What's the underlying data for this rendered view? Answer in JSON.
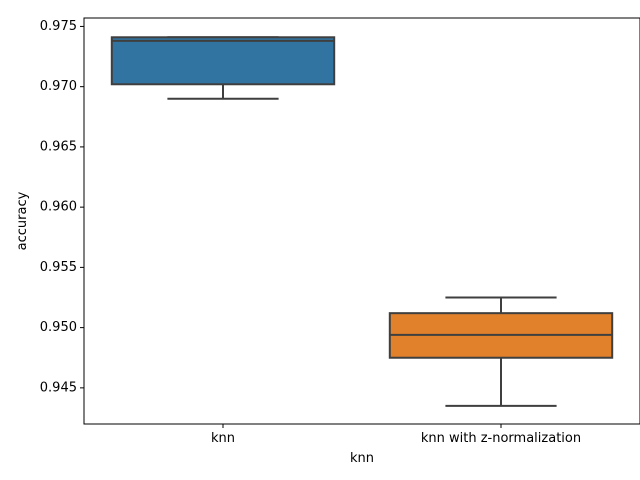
{
  "chart_data": {
    "type": "box",
    "title": "",
    "xlabel": "knn",
    "ylabel": "accuracy",
    "ylim": [
      0.942,
      0.9757
    ],
    "grid": false,
    "legend": "none",
    "yticks": [
      "0.945",
      "0.950",
      "0.955",
      "0.960",
      "0.965",
      "0.970",
      "0.975"
    ],
    "categories": [
      "knn",
      "knn with z-normalization"
    ],
    "boxes": [
      {
        "category": "knn",
        "whisker_low": 0.969,
        "q1": 0.9702,
        "median": 0.9738,
        "q3": 0.9741,
        "whisker_high": 0.9741,
        "color": "#3274a1"
      },
      {
        "category": "knn with z-normalization",
        "whisker_low": 0.9435,
        "q1": 0.9475,
        "median": 0.9494,
        "q3": 0.9512,
        "whisker_high": 0.9525,
        "color": "#e1812c"
      }
    ]
  }
}
